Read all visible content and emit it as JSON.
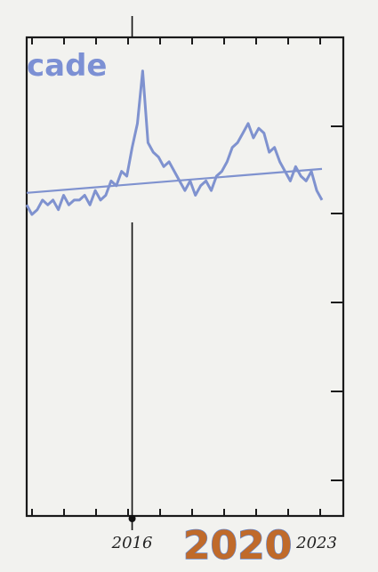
{
  "chart_data": {
    "type": "line",
    "title": "cade",
    "xlabel": "",
    "ylabel": "",
    "xlim": [
      2012.0,
      2023.2
    ],
    "ylim": [
      0,
      100
    ],
    "grid": false,
    "x_tick_labels": [
      "2016",
      "2020",
      "2023"
    ],
    "x_tick_values": [
      2016,
      2020,
      2023
    ],
    "annotation": {
      "x": 2016
    },
    "colors": {
      "series": "#7f92cf",
      "frame": "#1a1a1a",
      "highlight": "#c06a2a"
    },
    "series": [
      {
        "x": [
          2012.0,
          2012.2,
          2012.4,
          2012.6,
          2012.8,
          2013.0,
          2013.2,
          2013.4,
          2013.6,
          2013.8,
          2014.0,
          2014.2,
          2014.4,
          2014.6,
          2014.8,
          2015.0,
          2015.2,
          2015.4,
          2015.6,
          2015.8,
          2016.0,
          2016.2,
          2016.4,
          2016.6,
          2016.8,
          2017.0,
          2017.2,
          2017.4,
          2017.6,
          2017.8,
          2018.0,
          2018.2,
          2018.4,
          2018.6,
          2018.8,
          2019.0,
          2019.2,
          2019.4,
          2019.6,
          2019.8,
          2020.0,
          2020.2,
          2020.4,
          2020.6,
          2020.8,
          2021.0,
          2021.2,
          2021.4,
          2021.6,
          2021.8,
          2022.0,
          2022.2,
          2022.4,
          2022.6,
          2022.8,
          2023.0,
          2023.2
        ],
        "values": [
          65,
          63,
          64,
          66,
          65,
          66,
          64,
          67,
          65,
          66,
          66,
          67,
          65,
          68,
          66,
          67,
          70,
          69,
          72,
          71,
          77,
          82,
          93,
          78,
          76,
          75,
          73,
          74,
          72,
          70,
          68,
          70,
          67,
          69,
          70,
          68,
          71,
          72,
          74,
          77,
          78,
          80,
          82,
          79,
          81,
          80,
          76,
          77,
          74,
          72,
          70,
          73,
          71,
          70,
          72,
          68,
          66
        ]
      },
      {
        "x": [
          2012.0,
          2023.2
        ],
        "values": [
          67.5,
          72.5
        ]
      }
    ]
  }
}
